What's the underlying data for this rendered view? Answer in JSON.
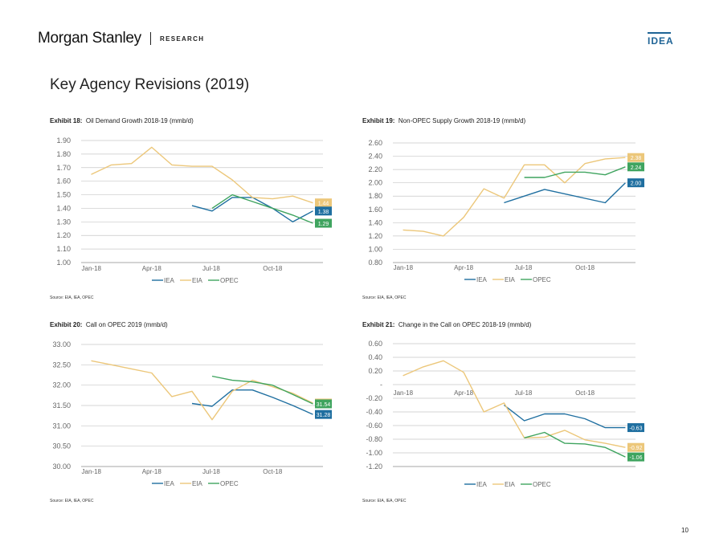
{
  "header": {
    "brand": "Morgan Stanley",
    "section": "RESEARCH",
    "tag": "IDEA"
  },
  "page_title": "Key Agency Revisions (2019)",
  "page_number": "10",
  "colors": {
    "IEA": "#1f6fa0",
    "EIA": "#ecc77a",
    "OPEC": "#3fa45f"
  },
  "legend": [
    "IEA",
    "EIA",
    "OPEC"
  ],
  "chart_data": [
    {
      "type": "line",
      "exhibit_label": "Exhibit 18:",
      "title": "Oil Demand Growth 2018-19 (mmb/d)",
      "source": "Source: EIA, IEA, OPEC",
      "x_ticks": [
        "Jan-18",
        "Apr-18",
        "Jul-18",
        "Oct-18"
      ],
      "y_ticks": [
        "1.00",
        "1.10",
        "1.20",
        "1.30",
        "1.40",
        "1.50",
        "1.60",
        "1.70",
        "1.80",
        "1.90"
      ],
      "ylim": [
        1.0,
        1.9
      ],
      "series": [
        {
          "name": "IEA",
          "x": [
            5,
            6,
            7,
            8,
            9,
            10,
            11
          ],
          "y": [
            1.42,
            1.38,
            1.48,
            1.48,
            1.4,
            1.3,
            1.38
          ]
        },
        {
          "name": "EIA",
          "x": [
            0,
            1,
            2,
            3,
            4,
            5,
            6,
            7,
            8,
            9,
            10,
            11
          ],
          "y": [
            1.65,
            1.72,
            1.73,
            1.85,
            1.72,
            1.71,
            1.71,
            1.61,
            1.48,
            1.47,
            1.49,
            1.44
          ]
        },
        {
          "name": "OPEC",
          "x": [
            6,
            7,
            8,
            9,
            10,
            11
          ],
          "y": [
            1.4,
            1.5,
            1.45,
            1.4,
            1.35,
            1.29
          ]
        }
      ],
      "end_labels": [
        {
          "series": "EIA",
          "text": "1.44",
          "value": 1.44
        },
        {
          "series": "IEA",
          "text": "1.38",
          "value": 1.38
        },
        {
          "series": "OPEC",
          "text": "1.29",
          "value": 1.29
        }
      ]
    },
    {
      "type": "line",
      "exhibit_label": "Exhibit 19:",
      "title": "Non-OPEC Supply Growth 2018-19 (mmb/d)",
      "source": "Source: EIA, IEA, OPEC",
      "x_ticks": [
        "Jan-18",
        "Apr-18",
        "Jul-18",
        "Oct-18"
      ],
      "y_ticks": [
        "0.80",
        "1.00",
        "1.20",
        "1.40",
        "1.60",
        "1.80",
        "2.00",
        "2.20",
        "2.40",
        "2.60"
      ],
      "ylim": [
        0.8,
        2.6
      ],
      "series": [
        {
          "name": "IEA",
          "x": [
            5,
            7,
            10,
            11
          ],
          "y": [
            1.7,
            1.9,
            1.7,
            2.0
          ]
        },
        {
          "name": "EIA",
          "x": [
            0,
            1,
            2,
            3,
            4,
            5,
            6,
            7,
            8,
            9,
            10,
            11
          ],
          "y": [
            1.29,
            1.27,
            1.2,
            1.48,
            1.91,
            1.77,
            2.27,
            2.27,
            2.0,
            2.29,
            2.36,
            2.38
          ]
        },
        {
          "name": "OPEC",
          "x": [
            6,
            7,
            8,
            9,
            10,
            11
          ],
          "y": [
            2.08,
            2.08,
            2.16,
            2.16,
            2.12,
            2.24
          ]
        }
      ],
      "end_labels": [
        {
          "series": "EIA",
          "text": "2.38",
          "value": 2.38
        },
        {
          "series": "OPEC",
          "text": "2.24",
          "value": 2.24
        },
        {
          "series": "IEA",
          "text": "2.00",
          "value": 2.0
        }
      ]
    },
    {
      "type": "line",
      "exhibit_label": "Exhibit 20:",
      "title": "Call on OPEC 2019 (mmb/d)",
      "source": "Source: EIA, IEA, OPEC",
      "x_ticks": [
        "Jan-18",
        "Apr-18",
        "Jul-18",
        "Oct-18"
      ],
      "y_ticks": [
        "30.00",
        "30.50",
        "31.00",
        "31.50",
        "32.00",
        "32.50",
        "33.00"
      ],
      "ylim": [
        30.0,
        33.0
      ],
      "series": [
        {
          "name": "IEA",
          "x": [
            5,
            6,
            7,
            8,
            9,
            10,
            11
          ],
          "y": [
            31.55,
            31.48,
            31.88,
            31.88,
            31.7,
            31.5,
            31.28
          ]
        },
        {
          "name": "EIA",
          "x": [
            0,
            1,
            2,
            3,
            4,
            5,
            6,
            7,
            8,
            9,
            10,
            11
          ],
          "y": [
            32.6,
            32.5,
            32.4,
            32.3,
            31.72,
            31.85,
            31.15,
            31.85,
            32.12,
            31.96,
            31.8,
            31.56
          ]
        },
        {
          "name": "OPEC",
          "x": [
            6,
            7,
            8,
            9,
            10,
            11
          ],
          "y": [
            32.22,
            32.12,
            32.08,
            32.0,
            31.77,
            31.54
          ]
        }
      ],
      "end_labels": [
        {
          "series": "EIA",
          "text": "31.56",
          "value": 31.56
        },
        {
          "series": "OPEC",
          "text": "31.54",
          "value": 31.54
        },
        {
          "series": "IEA",
          "text": "31.28",
          "value": 31.28
        }
      ]
    },
    {
      "type": "line",
      "exhibit_label": "Exhibit 21:",
      "title": "Change in the Call on OPEC 2018-19 (mmb/d)",
      "source": "Source: EIA, IEA, OPEC",
      "x_ticks": [
        "Jan-18",
        "Apr-18",
        "Jul-18",
        "Oct-18"
      ],
      "y_ticks": [
        "-1.20",
        "-1.00",
        "-0.80",
        "-0.60",
        "-0.40",
        "-0.20",
        "-",
        "0.20",
        "0.40",
        "0.60"
      ],
      "ylim": [
        -1.2,
        0.6
      ],
      "x_labels_at_zero": true,
      "series": [
        {
          "name": "IEA",
          "x": [
            5,
            6,
            7,
            8,
            9,
            10,
            11
          ],
          "y": [
            -0.3,
            -0.53,
            -0.43,
            -0.43,
            -0.5,
            -0.63,
            -0.63
          ]
        },
        {
          "name": "EIA",
          "x": [
            0,
            1,
            2,
            3,
            4,
            5,
            6,
            7,
            8,
            9,
            10,
            11
          ],
          "y": [
            0.13,
            0.26,
            0.35,
            0.18,
            -0.4,
            -0.27,
            -0.78,
            -0.77,
            -0.67,
            -0.81,
            -0.86,
            -0.92
          ]
        },
        {
          "name": "OPEC",
          "x": [
            6,
            7,
            8,
            9,
            10,
            11
          ],
          "y": [
            -0.78,
            -0.7,
            -0.86,
            -0.87,
            -0.92,
            -1.06
          ]
        }
      ],
      "end_labels": [
        {
          "series": "IEA",
          "text": "-0.63",
          "value": -0.63
        },
        {
          "series": "EIA",
          "text": "-0.92",
          "value": -0.92
        },
        {
          "series": "OPEC",
          "text": "-1.06",
          "value": -1.06
        }
      ]
    }
  ]
}
